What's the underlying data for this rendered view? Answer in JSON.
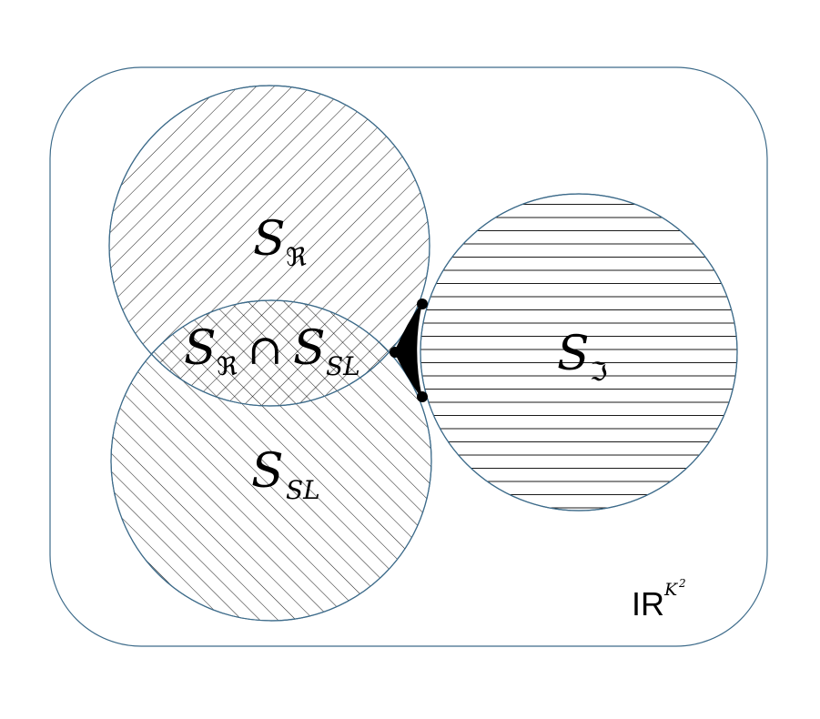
{
  "labels": {
    "s_real": {
      "main": "S",
      "sub": "ℜ"
    },
    "s_sl": {
      "main": "S",
      "sub": "SL"
    },
    "s_intersection": {
      "left_main": "S",
      "left_sub": "ℜ",
      "operator": "∩",
      "right_main": "S",
      "right_sub": "SL"
    },
    "s_imag": {
      "main": "S",
      "sub": "ℑ"
    },
    "space": {
      "base": "IR",
      "exp_base": "K",
      "exp_power": "2"
    }
  },
  "colors": {
    "outline": "#3d6b8a",
    "hatch": "#000000",
    "marker": "#000000"
  }
}
